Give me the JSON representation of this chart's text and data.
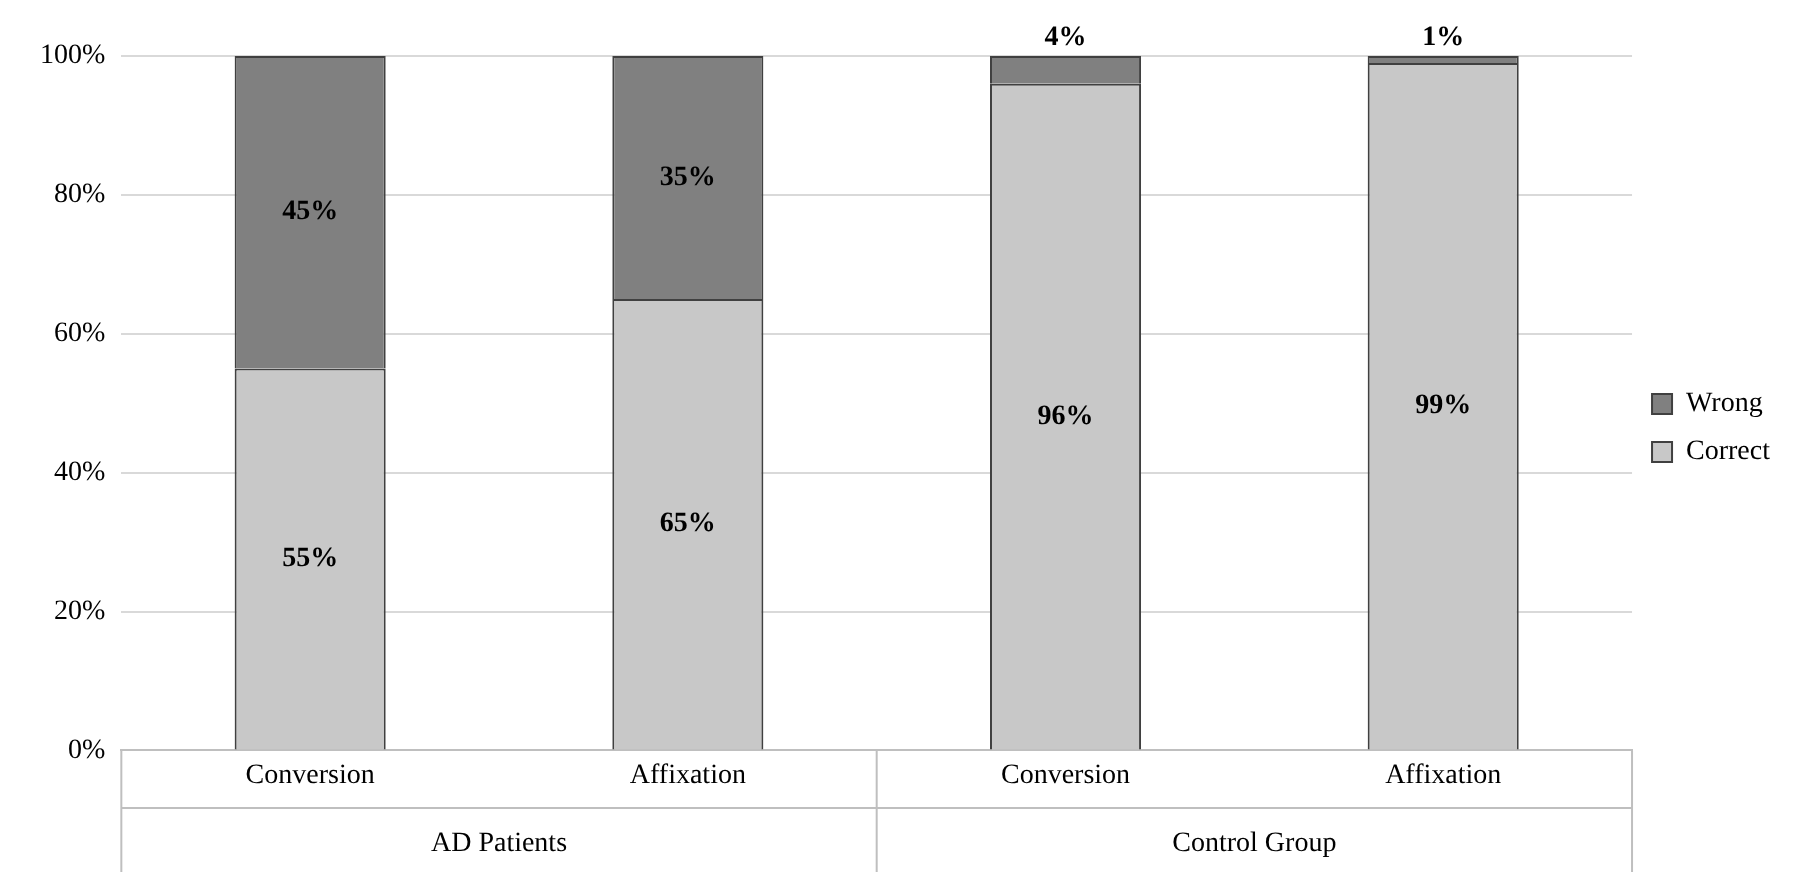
{
  "chart_data": {
    "type": "bar",
    "stacked": true,
    "categories": [
      "Conversion",
      "Affixation",
      "Conversion",
      "Affixation"
    ],
    "series": [
      {
        "name": "Correct",
        "color": "#c8c8c8",
        "values": [
          55,
          65,
          96,
          99
        ],
        "value_labels": [
          "55%",
          "65%",
          "96%",
          "99%"
        ]
      },
      {
        "name": "Wrong",
        "color": "#808080",
        "values": [
          45,
          35,
          4,
          1
        ],
        "value_labels": [
          "45%",
          "35%",
          "4%",
          "1%"
        ]
      }
    ],
    "ylim": [
      0,
      100
    ],
    "yticks": [
      {
        "value": 0,
        "label": "0%"
      },
      {
        "value": 20,
        "label": "20%"
      },
      {
        "value": 40,
        "label": "40%"
      },
      {
        "value": 60,
        "label": "60%"
      },
      {
        "value": 80,
        "label": "80%"
      },
      {
        "value": 100,
        "label": "100%"
      }
    ],
    "grid": "y",
    "legend": "right",
    "annotations": [
      "AD Patients",
      "Control Group"
    ]
  }
}
